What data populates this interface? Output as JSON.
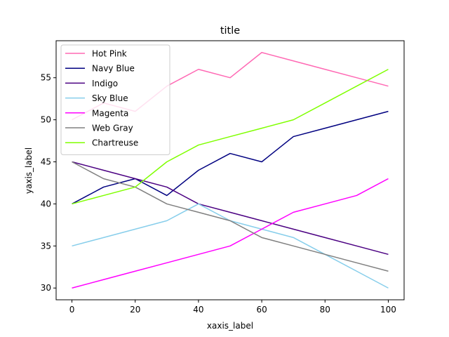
{
  "chart_data": {
    "type": "line",
    "title": "title",
    "xlabel": "xaxis_label",
    "ylabel": "yaxis_label",
    "xlim": [
      -5,
      105
    ],
    "ylim": [
      28.6,
      59.4
    ],
    "xticks": [
      0,
      20,
      40,
      60,
      80,
      100
    ],
    "yticks": [
      30,
      35,
      40,
      45,
      50,
      55
    ],
    "grid": false,
    "legend_position": "top-left",
    "series": [
      {
        "name": "Hot Pink",
        "color": "#ff69b4",
        "x": [
          0,
          10,
          20,
          30,
          40,
          50,
          60,
          70,
          80,
          90,
          100
        ],
        "y": [
          50,
          52,
          51,
          54,
          56,
          55,
          58,
          57,
          56,
          55,
          54
        ]
      },
      {
        "name": "Navy Blue",
        "color": "#000080",
        "x": [
          0,
          10,
          20,
          30,
          40,
          50,
          60,
          70,
          80,
          90,
          100
        ],
        "y": [
          40,
          42,
          43,
          41,
          44,
          46,
          45,
          48,
          49,
          50,
          51
        ]
      },
      {
        "name": "Indigo",
        "color": "#4b0082",
        "x": [
          0,
          10,
          20,
          30,
          40,
          50,
          60,
          70,
          80,
          90,
          100
        ],
        "y": [
          45,
          44,
          43,
          42,
          40,
          39,
          38,
          37,
          36,
          35,
          34
        ]
      },
      {
        "name": "Sky Blue",
        "color": "#87ceeb",
        "x": [
          0,
          10,
          20,
          30,
          40,
          50,
          60,
          70,
          80,
          90,
          100
        ],
        "y": [
          35,
          36,
          37,
          38,
          40,
          38,
          37,
          36,
          34,
          32,
          30
        ]
      },
      {
        "name": "Magenta",
        "color": "#ff00ff",
        "x": [
          0,
          10,
          20,
          30,
          40,
          50,
          60,
          70,
          80,
          90,
          100
        ],
        "y": [
          30,
          31,
          32,
          33,
          34,
          35,
          37,
          39,
          40,
          41,
          43
        ]
      },
      {
        "name": "Web Gray",
        "color": "#808080",
        "x": [
          0,
          10,
          20,
          30,
          40,
          50,
          60,
          70,
          80,
          90,
          100
        ],
        "y": [
          45,
          43,
          42,
          40,
          39,
          38,
          36,
          35,
          34,
          33,
          32
        ]
      },
      {
        "name": "Chartreuse",
        "color": "#7fff00",
        "x": [
          0,
          10,
          20,
          30,
          40,
          50,
          60,
          70,
          80,
          90,
          100
        ],
        "y": [
          40,
          41,
          42,
          45,
          47,
          48,
          49,
          50,
          52,
          54,
          56
        ]
      }
    ]
  }
}
